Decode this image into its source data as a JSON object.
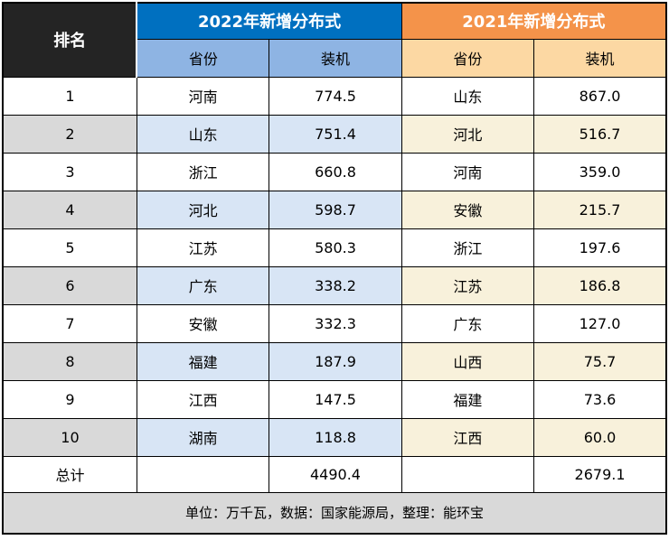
{
  "table": {
    "rank_header": "排名",
    "groups": [
      {
        "title": "2022年新增分布式",
        "province_header": "省份",
        "capacity_header": "装机"
      },
      {
        "title": "2021年新增分布式",
        "province_header": "省份",
        "capacity_header": "装机"
      }
    ],
    "rows": [
      {
        "rank": "1",
        "p2022": "河南",
        "v2022": "774.5",
        "p2021": "山东",
        "v2021": "867.0"
      },
      {
        "rank": "2",
        "p2022": "山东",
        "v2022": "751.4",
        "p2021": "河北",
        "v2021": "516.7"
      },
      {
        "rank": "3",
        "p2022": "浙江",
        "v2022": "660.8",
        "p2021": "河南",
        "v2021": "359.0"
      },
      {
        "rank": "4",
        "p2022": "河北",
        "v2022": "598.7",
        "p2021": "安徽",
        "v2021": "215.7"
      },
      {
        "rank": "5",
        "p2022": "江苏",
        "v2022": "580.3",
        "p2021": "浙江",
        "v2021": "197.6"
      },
      {
        "rank": "6",
        "p2022": "广东",
        "v2022": "338.2",
        "p2021": "江苏",
        "v2021": "186.8"
      },
      {
        "rank": "7",
        "p2022": "安徽",
        "v2022": "332.3",
        "p2021": "广东",
        "v2021": "127.0"
      },
      {
        "rank": "8",
        "p2022": "福建",
        "v2022": "187.9",
        "p2021": "山西",
        "v2021": "75.7"
      },
      {
        "rank": "9",
        "p2022": "江西",
        "v2022": "147.5",
        "p2021": "福建",
        "v2021": "73.6"
      },
      {
        "rank": "10",
        "p2022": "湖南",
        "v2022": "118.8",
        "p2021": "江西",
        "v2021": "60.0"
      }
    ],
    "total": {
      "label": "总计",
      "v2022": "4490.4",
      "v2021": "2679.1"
    },
    "footer": "单位：万千瓦，数据：国家能源局，整理：能环宝"
  },
  "colors": {
    "rank_header_bg": "#242424",
    "group_2022_bg": "#0070C0",
    "group_2021_bg": "#F4934A",
    "sub_2022_bg": "#8EB4E3",
    "sub_2021_bg": "#FCD8A3",
    "stripe_rank_bg": "#D9D9D9",
    "stripe_2022_bg": "#D8E5F5",
    "stripe_2021_bg": "#F8F1DB",
    "footer_bg": "#D9D9D9",
    "border": "#000000"
  },
  "chart_data": {
    "type": "table",
    "title": "新增分布式装机排名",
    "columns": [
      "排名",
      "2022年新增分布式 省份",
      "2022年新增分布式 装机",
      "2021年新增分布式 省份",
      "2021年新增分布式 装机"
    ],
    "series": [
      {
        "name": "2022年新增分布式",
        "unit": "万千瓦",
        "data": [
          [
            "河南",
            774.5
          ],
          [
            "山东",
            751.4
          ],
          [
            "浙江",
            660.8
          ],
          [
            "河北",
            598.7
          ],
          [
            "江苏",
            580.3
          ],
          [
            "广东",
            338.2
          ],
          [
            "安徽",
            332.3
          ],
          [
            "福建",
            187.9
          ],
          [
            "江西",
            147.5
          ],
          [
            "湖南",
            118.8
          ]
        ],
        "total": 4490.4
      },
      {
        "name": "2021年新增分布式",
        "unit": "万千瓦",
        "data": [
          [
            "山东",
            867.0
          ],
          [
            "河北",
            516.7
          ],
          [
            "河南",
            359.0
          ],
          [
            "安徽",
            215.7
          ],
          [
            "浙江",
            197.6
          ],
          [
            "江苏",
            186.8
          ],
          [
            "广东",
            127.0
          ],
          [
            "山西",
            75.7
          ],
          [
            "福建",
            73.6
          ],
          [
            "江西",
            60.0
          ]
        ],
        "total": 2679.1
      }
    ],
    "note": "单位：万千瓦，数据：国家能源局，整理：能环宝"
  }
}
